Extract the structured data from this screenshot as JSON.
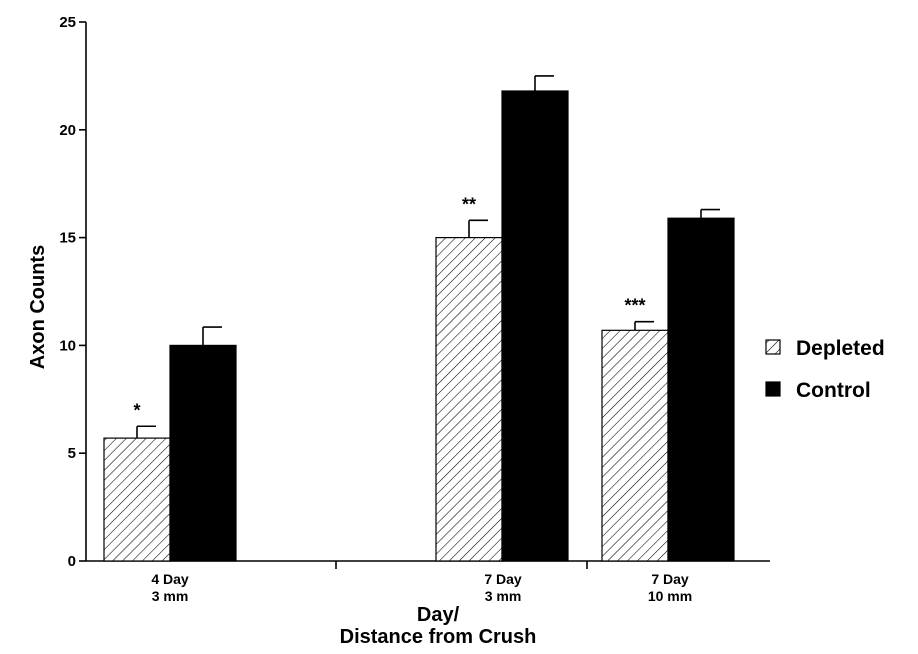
{
  "chart_data": {
    "type": "bar",
    "title": "",
    "xlabel_lines": [
      "Day/",
      "Distance from Crush"
    ],
    "ylabel": "Axon Counts",
    "ylim": [
      0,
      25
    ],
    "yticks": [
      0,
      5,
      10,
      15,
      20,
      25
    ],
    "grid": false,
    "legend_position": "right",
    "categories": [
      {
        "lines": [
          "4  Day",
          "3 mm"
        ]
      },
      {
        "lines": [
          "",
          ""
        ]
      },
      {
        "lines": [
          "7  Day",
          "3 mm"
        ]
      },
      {
        "lines": [
          "7  Day",
          "10 mm"
        ]
      }
    ],
    "series": [
      {
        "name": "Depleted",
        "pattern": "hatched",
        "color": "#000000",
        "values": [
          5.7,
          null,
          15.0,
          10.7
        ],
        "errors": [
          0.55,
          null,
          0.8,
          0.4
        ],
        "annotations": [
          "*",
          null,
          "**",
          "***"
        ]
      },
      {
        "name": "Control",
        "pattern": "solid",
        "color": "#000000",
        "values": [
          10.0,
          null,
          21.8,
          15.9
        ],
        "errors": [
          0.85,
          null,
          0.7,
          0.4
        ],
        "annotations": [
          null,
          null,
          null,
          null
        ]
      }
    ]
  }
}
